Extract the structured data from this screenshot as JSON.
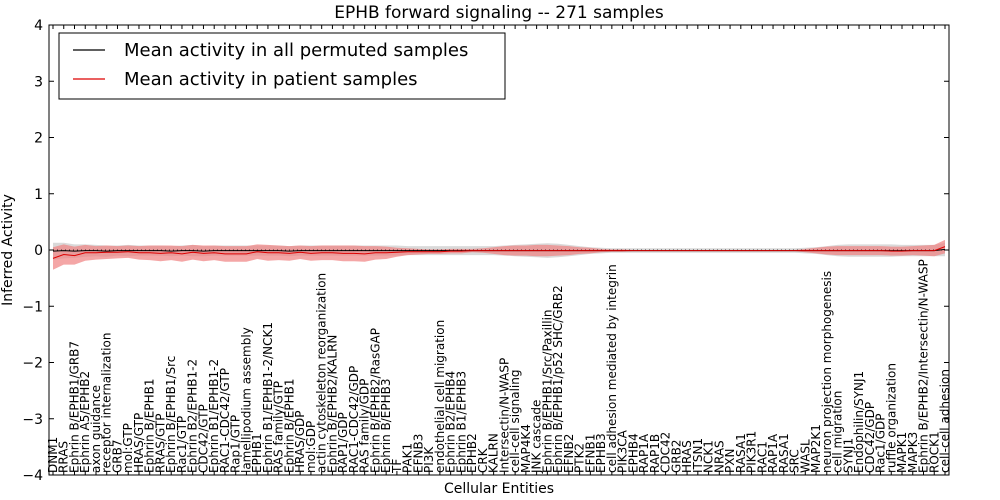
{
  "chart_data": {
    "type": "line",
    "title": "EPHB forward signaling -- 271 samples",
    "xlabel": "Cellular Entities",
    "ylabel": "Inferred Activity",
    "ylim": [
      -4,
      4
    ],
    "yticks": [
      "4",
      "3",
      "2",
      "1",
      "0",
      "−1",
      "−2",
      "−3",
      "−4"
    ],
    "ytick_values": [
      4,
      3,
      2,
      1,
      0,
      -1,
      -2,
      -3,
      -4
    ],
    "grid": false,
    "legend_position": "top-left",
    "colors": {
      "permuted_line": "#000000",
      "patient_line": "#dd0000",
      "permuted_band": "#cccccc",
      "patient_band": "#f08080",
      "reference_line": "#000000"
    },
    "categories": [
      "DNM1",
      "RRAS",
      "Ephrin B/EPHB1/GRB7",
      "Ephrin A5/EPHB2",
      "axon guidance",
      "receptor internalization",
      "GRB7",
      "mol:GTP",
      "HRAS/GTP",
      "Ephrin B/EPHB1",
      "RRAS/GTP",
      "Ephrin B/EPHB1/Src",
      "Rac1/GTP",
      "Ephrin B2/EPHB1-2",
      "CDC42/GTP",
      "Ephrin B1/EPHB1-2",
      "RAC1-CDC42/GTP",
      "Rap1/GTP",
      "lamellipodium assembly",
      "EPHB1",
      "Ephrin B1/EPHB1-2/NCK1",
      "RAS family/GTP",
      "Ephrin B/EPHB1",
      "HRAS/GDP",
      "mol:GDP",
      "actin cytoskeleton reorganization",
      "Ephrin B/EPHB2/KALRN",
      "RAP1/GDP",
      "RAC1-CDC42/GDP",
      "RAS family/GDP",
      "Ephrin B/EPHB2/RasGAP",
      "Ephrin B/EPHB3",
      "TF",
      "PAK1",
      "EFNB3",
      "PI3K",
      "endothelial cell migration",
      "Ephrin B2/EPHB4",
      "Ephrin B1/EPHB3",
      "EPHB2",
      "CRK",
      "KALRN",
      "Intersectin/N-WASP",
      "cell-cell signaling",
      "MAP4K4",
      "JNK cascade",
      "Ephrin B/EPHB1/Src/Paxillin",
      "Ephrin B/EPHB1/p52 SHC/GRB2",
      "EFNB2",
      "PTK2",
      "EFNB1",
      "EPHB3",
      "cell adhesion mediated by integrin",
      "PIK3CA",
      "EPHB4",
      "RAP1A",
      "RAP1B",
      "CDC42",
      "GRB2",
      "HRAS",
      "ITSN1",
      "NCK1",
      "NRAS",
      "PXN",
      "RASA1",
      "PIK3R1",
      "RAC1",
      "RAP1A",
      "RASA1",
      "SRC",
      "WASL",
      "MAP2K1",
      "neuron projection morphogenesis",
      "cell migration",
      "SYNJ1",
      "Endophilin/SYNJ1",
      "CDC42/GDP",
      "Rac1/GDP",
      "ruffle organization",
      "MAPK1",
      "MAPK3",
      "Ephrin B/EPHB2/Intersectin/N-WASP",
      "ROCK1",
      "cell-cell adhesion"
    ],
    "series": [
      {
        "name": "Mean activity in all permuted samples",
        "values": [
          -0.02,
          -0.01,
          -0.02,
          -0.01,
          -0.01,
          -0.02,
          -0.01,
          -0.01,
          -0.01,
          -0.01,
          -0.01,
          -0.02,
          -0.01,
          -0.01,
          -0.02,
          -0.01,
          -0.01,
          -0.01,
          -0.01,
          -0.01,
          -0.01,
          -0.01,
          -0.02,
          -0.01,
          -0.01,
          -0.01,
          -0.01,
          -0.01,
          -0.01,
          -0.01,
          -0.01,
          -0.01,
          -0.01,
          -0.01,
          -0.01,
          -0.01,
          -0.01,
          -0.01,
          -0.01,
          -0.01,
          -0.01,
          -0.01,
          -0.01,
          -0.01,
          -0.01,
          -0.01,
          -0.01,
          -0.01,
          -0.01,
          -0.01,
          -0.01,
          -0.01,
          -0.01,
          -0.01,
          -0.01,
          -0.01,
          -0.01,
          -0.01,
          -0.01,
          -0.01,
          -0.01,
          -0.01,
          -0.01,
          -0.01,
          -0.01,
          -0.01,
          -0.01,
          -0.01,
          -0.01,
          -0.01,
          -0.01,
          -0.01,
          -0.01,
          -0.01,
          -0.01,
          -0.01,
          -0.01,
          -0.01,
          -0.01,
          -0.01,
          -0.01,
          -0.01,
          -0.01,
          0.01
        ],
        "spread": [
          0.15,
          0.14,
          0.12,
          0.11,
          0.1,
          0.1,
          0.09,
          0.1,
          0.09,
          0.09,
          0.09,
          0.09,
          0.09,
          0.1,
          0.09,
          0.09,
          0.09,
          0.09,
          0.09,
          0.09,
          0.09,
          0.09,
          0.09,
          0.09,
          0.09,
          0.09,
          0.09,
          0.09,
          0.09,
          0.09,
          0.09,
          0.09,
          0.09,
          0.08,
          0.08,
          0.08,
          0.08,
          0.08,
          0.08,
          0.08,
          0.08,
          0.08,
          0.09,
          0.1,
          0.11,
          0.12,
          0.13,
          0.12,
          0.1,
          0.08,
          0.06,
          0.05,
          0.04,
          0.04,
          0.04,
          0.04,
          0.04,
          0.04,
          0.04,
          0.04,
          0.04,
          0.04,
          0.04,
          0.04,
          0.04,
          0.04,
          0.04,
          0.04,
          0.04,
          0.04,
          0.05,
          0.06,
          0.08,
          0.1,
          0.11,
          0.11,
          0.11,
          0.11,
          0.11,
          0.1,
          0.1,
          0.1,
          0.1,
          0.12
        ]
      },
      {
        "name": "Mean activity in patient samples",
        "values": [
          -0.15,
          -0.08,
          -0.1,
          -0.05,
          -0.05,
          -0.04,
          -0.04,
          -0.03,
          -0.05,
          -0.05,
          -0.06,
          -0.05,
          -0.07,
          -0.04,
          -0.06,
          -0.05,
          -0.07,
          -0.07,
          -0.07,
          -0.03,
          -0.05,
          -0.05,
          -0.06,
          -0.04,
          -0.06,
          -0.05,
          -0.05,
          -0.06,
          -0.06,
          -0.07,
          -0.05,
          -0.05,
          -0.04,
          -0.03,
          -0.03,
          -0.03,
          -0.03,
          -0.02,
          -0.02,
          -0.01,
          -0.01,
          -0.01,
          -0.01,
          -0.01,
          -0.01,
          -0.01,
          -0.01,
          -0.01,
          -0.01,
          -0.01,
          -0.01,
          -0.01,
          -0.01,
          -0.01,
          -0.01,
          -0.01,
          -0.01,
          -0.01,
          -0.01,
          -0.01,
          -0.01,
          -0.01,
          -0.01,
          -0.01,
          -0.01,
          -0.01,
          -0.01,
          -0.01,
          -0.01,
          -0.01,
          -0.01,
          -0.01,
          -0.01,
          -0.01,
          -0.01,
          -0.01,
          -0.01,
          -0.01,
          -0.02,
          -0.02,
          -0.01,
          -0.01,
          -0.01,
          0.06
        ],
        "spread": [
          0.2,
          0.18,
          0.16,
          0.14,
          0.12,
          0.12,
          0.11,
          0.11,
          0.12,
          0.13,
          0.14,
          0.13,
          0.14,
          0.13,
          0.14,
          0.13,
          0.14,
          0.14,
          0.14,
          0.13,
          0.14,
          0.13,
          0.13,
          0.12,
          0.13,
          0.13,
          0.13,
          0.14,
          0.14,
          0.14,
          0.12,
          0.11,
          0.08,
          0.06,
          0.05,
          0.04,
          0.04,
          0.04,
          0.04,
          0.03,
          0.04,
          0.06,
          0.08,
          0.09,
          0.09,
          0.1,
          0.1,
          0.09,
          0.08,
          0.06,
          0.05,
          0.03,
          0.02,
          0.02,
          0.01,
          0.01,
          0.01,
          0.01,
          0.01,
          0.01,
          0.01,
          0.01,
          0.01,
          0.01,
          0.01,
          0.01,
          0.01,
          0.01,
          0.01,
          0.01,
          0.03,
          0.05,
          0.07,
          0.08,
          0.08,
          0.08,
          0.08,
          0.08,
          0.08,
          0.08,
          0.08,
          0.09,
          0.1,
          0.12
        ]
      }
    ]
  }
}
